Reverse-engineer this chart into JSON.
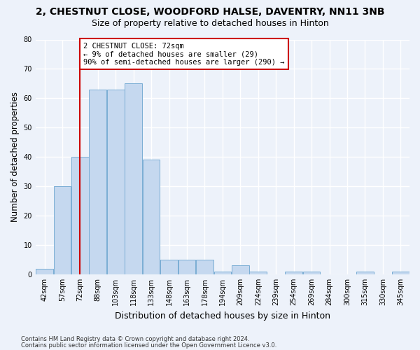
{
  "title_line1": "2, CHESTNUT CLOSE, WOODFORD HALSE, DAVENTRY, NN11 3NB",
  "title_line2": "Size of property relative to detached houses in Hinton",
  "xlabel": "Distribution of detached houses by size in Hinton",
  "ylabel": "Number of detached properties",
  "categories": [
    "42sqm",
    "57sqm",
    "72sqm",
    "88sqm",
    "103sqm",
    "118sqm",
    "133sqm",
    "148sqm",
    "163sqm",
    "178sqm",
    "194sqm",
    "209sqm",
    "224sqm",
    "239sqm",
    "254sqm",
    "269sqm",
    "284sqm",
    "300sqm",
    "315sqm",
    "330sqm",
    "345sqm"
  ],
  "values": [
    2,
    30,
    40,
    63,
    63,
    65,
    39,
    5,
    5,
    5,
    1,
    3,
    1,
    0,
    1,
    1,
    0,
    0,
    1,
    0,
    1
  ],
  "bar_color": "#c5d8ef",
  "bar_edge_color": "#7aadd4",
  "red_line_x": 2,
  "annotation_text": "2 CHESTNUT CLOSE: 72sqm\n← 9% of detached houses are smaller (29)\n90% of semi-detached houses are larger (290) →",
  "ylim": [
    0,
    80
  ],
  "yticks": [
    0,
    10,
    20,
    30,
    40,
    50,
    60,
    70,
    80
  ],
  "footer_line1": "Contains HM Land Registry data © Crown copyright and database right 2024.",
  "footer_line2": "Contains public sector information licensed under the Open Government Licence v3.0.",
  "bg_color": "#edf2fa",
  "grid_color": "#ffffff",
  "annotation_box_color": "#ffffff",
  "annotation_box_edge": "#cc0000",
  "red_line_color": "#cc0000",
  "title1_fontsize": 10,
  "title2_fontsize": 9,
  "tick_fontsize": 7,
  "ylabel_fontsize": 8.5,
  "xlabel_fontsize": 9
}
